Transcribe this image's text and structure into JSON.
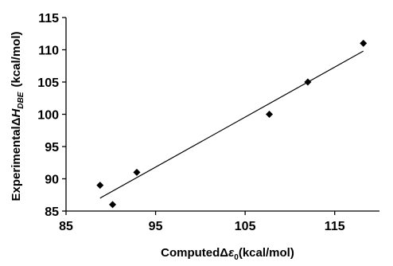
{
  "chart_data": {
    "type": "scatter",
    "title": "",
    "xlabel": {
      "prefix": "Computed",
      "delta": "Δ",
      "symbol": "ε",
      "subscript": "0",
      "unit": "(kcal/mol)"
    },
    "ylabel": {
      "prefix": "Experimental",
      "delta": "Δ",
      "symbol": "H",
      "subscript": "DBE",
      "unit": "(kcal/mol)"
    },
    "xlim": [
      85,
      120
    ],
    "ylim": [
      85,
      115
    ],
    "x_ticks": [
      "85",
      "95",
      "105",
      "115"
    ],
    "y_ticks": [
      "85",
      "90",
      "95",
      "100",
      "105",
      "110",
      "115"
    ],
    "grid": false,
    "legend": "none",
    "marker": "diamond",
    "marker_color": "#000000",
    "series": [
      {
        "points": [
          {
            "x": 88.8,
            "y": 89
          },
          {
            "x": 90.2,
            "y": 86
          },
          {
            "x": 92.9,
            "y": 91
          },
          {
            "x": 107.7,
            "y": 100
          },
          {
            "x": 112.0,
            "y": 105
          },
          {
            "x": 118.2,
            "y": 111
          }
        ]
      }
    ],
    "trendline": {
      "x": [
        88.8,
        118.2
      ],
      "y": [
        87.0,
        109.8
      ],
      "color": "#000000"
    }
  }
}
